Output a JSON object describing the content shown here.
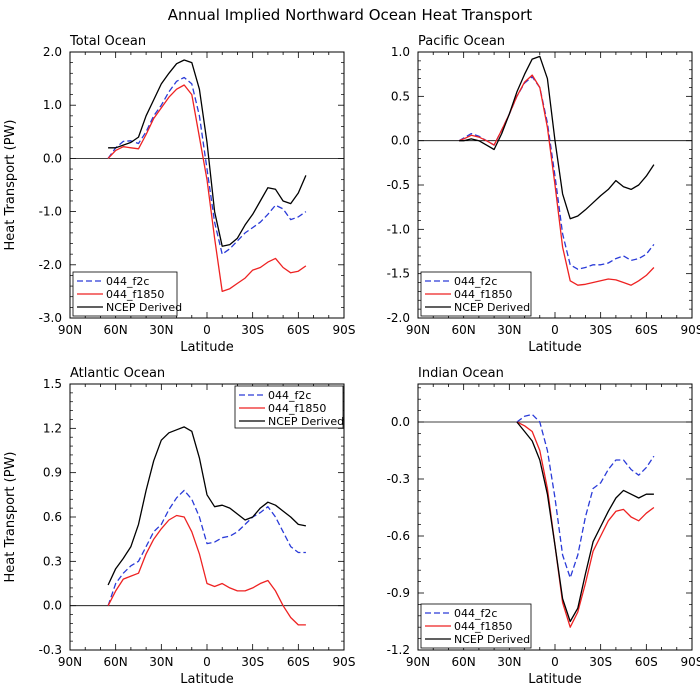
{
  "title": "Annual Implied Northward Ocean Heat Transport",
  "colors": {
    "044_f2c": "#2a3bd8",
    "044_f1850": "#ee2222",
    "NCEP Derived": "#000000"
  },
  "chart_data": [
    {
      "type": "line",
      "title": "Total Ocean",
      "xlabel": "Latitude",
      "ylabel": "Heat Transport (PW)",
      "xlim": [
        90,
        -90
      ],
      "ylim": [
        -3.0,
        2.0
      ],
      "xticks": [
        90,
        60,
        30,
        0,
        -30,
        -60,
        -90
      ],
      "xtick_labels": [
        "90N",
        "60N",
        "30N",
        "0",
        "30S",
        "60S",
        "90S"
      ],
      "yticks": [
        -3.0,
        -2.0,
        -1.0,
        0.0,
        1.0,
        2.0
      ],
      "ytick_labels": [
        "-3.0",
        "-2.0",
        "-1.0",
        "0.0",
        "1.0",
        "2.0"
      ],
      "legend": "bottom-left",
      "series": [
        {
          "name": "044_f2c",
          "style": "dashed",
          "x": [
            65,
            60,
            55,
            50,
            45,
            40,
            35,
            30,
            25,
            20,
            15,
            10,
            5,
            0,
            -5,
            -10,
            -15,
            -20,
            -25,
            -30,
            -35,
            -40,
            -45,
            -50,
            -55,
            -60,
            -65
          ],
          "y": [
            0.0,
            0.2,
            0.32,
            0.33,
            0.28,
            0.5,
            0.8,
            1.0,
            1.25,
            1.45,
            1.52,
            1.4,
            0.8,
            -0.2,
            -1.2,
            -1.8,
            -1.7,
            -1.55,
            -1.4,
            -1.3,
            -1.2,
            -1.05,
            -0.88,
            -0.95,
            -1.15,
            -1.1,
            -1.0
          ]
        },
        {
          "name": "044_f1850",
          "style": "solid",
          "x": [
            65,
            60,
            55,
            50,
            45,
            40,
            35,
            30,
            25,
            20,
            15,
            10,
            5,
            0,
            -5,
            -10,
            -15,
            -20,
            -25,
            -30,
            -35,
            -40,
            -45,
            -50,
            -55,
            -60,
            -65
          ],
          "y": [
            0.0,
            0.15,
            0.22,
            0.2,
            0.18,
            0.45,
            0.75,
            0.95,
            1.15,
            1.3,
            1.38,
            1.2,
            0.4,
            -0.4,
            -1.5,
            -2.5,
            -2.45,
            -2.35,
            -2.25,
            -2.1,
            -2.05,
            -1.95,
            -1.88,
            -2.05,
            -2.15,
            -2.12,
            -2.02
          ]
        },
        {
          "name": "NCEP Derived",
          "style": "solid",
          "x": [
            65,
            60,
            55,
            50,
            45,
            40,
            35,
            30,
            25,
            20,
            15,
            10,
            5,
            0,
            -5,
            -10,
            -15,
            -20,
            -25,
            -30,
            -35,
            -40,
            -45,
            -50,
            -55,
            -60,
            -65
          ],
          "y": [
            0.2,
            0.2,
            0.25,
            0.3,
            0.4,
            0.8,
            1.1,
            1.4,
            1.6,
            1.78,
            1.85,
            1.8,
            1.3,
            0.3,
            -1.0,
            -1.65,
            -1.62,
            -1.5,
            -1.25,
            -1.05,
            -0.8,
            -0.55,
            -0.58,
            -0.8,
            -0.85,
            -0.65,
            -0.32
          ]
        }
      ]
    },
    {
      "type": "line",
      "title": "Pacific Ocean",
      "xlabel": "Latitude",
      "ylabel": "",
      "xlim": [
        90,
        -90
      ],
      "ylim": [
        -2.0,
        1.0
      ],
      "xticks": [
        90,
        60,
        30,
        0,
        -30,
        -60,
        -90
      ],
      "xtick_labels": [
        "90N",
        "60N",
        "30N",
        "0",
        "30S",
        "60S",
        "90S"
      ],
      "yticks": [
        -2.0,
        -1.5,
        -1.0,
        -0.5,
        0.0,
        0.5,
        1.0
      ],
      "ytick_labels": [
        "-2.0",
        "-1.5",
        "-1.0",
        "-0.5",
        "0.0",
        "0.5",
        "1.0"
      ],
      "legend": "bottom-left",
      "series": [
        {
          "name": "044_f2c",
          "style": "dashed",
          "x": [
            63,
            60,
            55,
            50,
            45,
            40,
            35,
            30,
            25,
            20,
            15,
            10,
            5,
            0,
            -5,
            -10,
            -15,
            -20,
            -25,
            -30,
            -35,
            -40,
            -45,
            -50,
            -55,
            -60,
            -65
          ],
          "y": [
            0.0,
            0.03,
            0.08,
            0.05,
            0.0,
            -0.05,
            0.12,
            0.3,
            0.5,
            0.65,
            0.72,
            0.6,
            0.2,
            -0.4,
            -1.05,
            -1.4,
            -1.45,
            -1.43,
            -1.4,
            -1.4,
            -1.38,
            -1.33,
            -1.3,
            -1.35,
            -1.33,
            -1.28,
            -1.17
          ]
        },
        {
          "name": "044_f1850",
          "style": "solid",
          "x": [
            63,
            60,
            55,
            50,
            45,
            40,
            35,
            30,
            25,
            20,
            15,
            10,
            5,
            0,
            -5,
            -10,
            -15,
            -20,
            -25,
            -30,
            -35,
            -40,
            -45,
            -50,
            -55,
            -60,
            -65
          ],
          "y": [
            0.0,
            0.02,
            0.06,
            0.04,
            0.0,
            -0.05,
            0.12,
            0.3,
            0.5,
            0.66,
            0.74,
            0.6,
            0.15,
            -0.5,
            -1.2,
            -1.58,
            -1.63,
            -1.62,
            -1.6,
            -1.58,
            -1.56,
            -1.57,
            -1.6,
            -1.63,
            -1.58,
            -1.52,
            -1.43
          ]
        },
        {
          "name": "NCEP Derived",
          "style": "solid",
          "x": [
            63,
            60,
            55,
            50,
            45,
            40,
            35,
            30,
            25,
            20,
            15,
            10,
            5,
            0,
            -5,
            -10,
            -15,
            -20,
            -25,
            -30,
            -35,
            -40,
            -45,
            -50,
            -55,
            -60,
            -65
          ],
          "y": [
            0.0,
            0.0,
            0.02,
            0.0,
            -0.05,
            -0.1,
            0.08,
            0.3,
            0.55,
            0.75,
            0.92,
            0.95,
            0.7,
            0.0,
            -0.6,
            -0.88,
            -0.85,
            -0.78,
            -0.7,
            -0.62,
            -0.55,
            -0.45,
            -0.52,
            -0.55,
            -0.5,
            -0.4,
            -0.27
          ]
        }
      ]
    },
    {
      "type": "line",
      "title": "Atlantic Ocean",
      "xlabel": "Latitude",
      "ylabel": "Heat Transport (PW)",
      "xlim": [
        90,
        -90
      ],
      "ylim": [
        -0.3,
        1.5
      ],
      "xticks": [
        90,
        60,
        30,
        0,
        -30,
        -60,
        -90
      ],
      "xtick_labels": [
        "90N",
        "60N",
        "30N",
        "0",
        "30S",
        "60S",
        "90S"
      ],
      "yticks": [
        -0.3,
        0.0,
        0.3,
        0.6,
        0.9,
        1.2,
        1.5
      ],
      "ytick_labels": [
        "-0.3",
        "0.0",
        "0.3",
        "0.6",
        "0.9",
        "1.2",
        "1.5"
      ],
      "legend": "top-right",
      "series": [
        {
          "name": "044_f2c",
          "style": "dashed",
          "x": [
            65,
            60,
            55,
            50,
            45,
            40,
            35,
            30,
            25,
            20,
            15,
            10,
            5,
            0,
            -5,
            -10,
            -15,
            -20,
            -25,
            -30,
            -35,
            -40,
            -45,
            -50,
            -55,
            -60,
            -65
          ],
          "y": [
            0.0,
            0.15,
            0.22,
            0.27,
            0.3,
            0.4,
            0.5,
            0.55,
            0.65,
            0.73,
            0.78,
            0.72,
            0.6,
            0.42,
            0.43,
            0.46,
            0.47,
            0.5,
            0.55,
            0.6,
            0.63,
            0.67,
            0.6,
            0.5,
            0.4,
            0.36,
            0.36
          ]
        },
        {
          "name": "044_f1850",
          "style": "solid",
          "x": [
            65,
            60,
            55,
            50,
            45,
            40,
            35,
            30,
            25,
            20,
            15,
            10,
            5,
            0,
            -5,
            -10,
            -15,
            -20,
            -25,
            -30,
            -35,
            -40,
            -45,
            -50,
            -55,
            -60,
            -65
          ],
          "y": [
            0.0,
            0.1,
            0.18,
            0.2,
            0.22,
            0.35,
            0.45,
            0.52,
            0.58,
            0.61,
            0.6,
            0.5,
            0.35,
            0.15,
            0.13,
            0.15,
            0.12,
            0.1,
            0.1,
            0.12,
            0.15,
            0.17,
            0.1,
            0.0,
            -0.08,
            -0.13,
            -0.13
          ]
        },
        {
          "name": "NCEP Derived",
          "style": "solid",
          "x": [
            65,
            60,
            55,
            50,
            45,
            40,
            35,
            30,
            25,
            20,
            15,
            10,
            5,
            0,
            -5,
            -10,
            -15,
            -20,
            -25,
            -30,
            -35,
            -40,
            -45,
            -50,
            -55,
            -60,
            -65
          ],
          "y": [
            0.14,
            0.25,
            0.32,
            0.4,
            0.55,
            0.78,
            0.98,
            1.12,
            1.17,
            1.19,
            1.21,
            1.18,
            1.0,
            0.75,
            0.67,
            0.68,
            0.66,
            0.62,
            0.58,
            0.6,
            0.66,
            0.7,
            0.68,
            0.64,
            0.6,
            0.55,
            0.54
          ]
        }
      ]
    },
    {
      "type": "line",
      "title": "Indian Ocean",
      "xlabel": "Latitude",
      "ylabel": "",
      "xlim": [
        90,
        -90
      ],
      "ylim": [
        -1.2,
        0.2
      ],
      "xticks": [
        90,
        60,
        30,
        0,
        -30,
        -60,
        -90
      ],
      "xtick_labels": [
        "90N",
        "60N",
        "30N",
        "0",
        "30S",
        "60S",
        "90S"
      ],
      "yticks": [
        -1.2,
        -0.9,
        -0.6,
        -0.3,
        0.0
      ],
      "ytick_labels": [
        "-1.2",
        "-0.9",
        "-0.6",
        "-0.3",
        "0.0"
      ],
      "legend": "bottom-left",
      "series": [
        {
          "name": "044_f2c",
          "style": "dashed",
          "x": [
            25,
            20,
            15,
            10,
            5,
            0,
            -5,
            -10,
            -15,
            -20,
            -25,
            -30,
            -35,
            -40,
            -45,
            -50,
            -55,
            -60,
            -65
          ],
          "y": [
            0.0,
            0.03,
            0.04,
            0.0,
            -0.15,
            -0.4,
            -0.7,
            -0.82,
            -0.7,
            -0.5,
            -0.35,
            -0.32,
            -0.25,
            -0.2,
            -0.2,
            -0.25,
            -0.28,
            -0.24,
            -0.18
          ]
        },
        {
          "name": "044_f1850",
          "style": "solid",
          "x": [
            25,
            20,
            15,
            10,
            5,
            0,
            -5,
            -10,
            -15,
            -20,
            -25,
            -30,
            -35,
            -40,
            -45,
            -50,
            -55,
            -60,
            -65
          ],
          "y": [
            0.0,
            -0.02,
            -0.05,
            -0.15,
            -0.35,
            -0.65,
            -0.95,
            -1.08,
            -1.0,
            -0.85,
            -0.68,
            -0.6,
            -0.52,
            -0.47,
            -0.46,
            -0.5,
            -0.52,
            -0.48,
            -0.45
          ]
        },
        {
          "name": "NCEP Derived",
          "style": "solid",
          "x": [
            25,
            20,
            15,
            10,
            5,
            0,
            -5,
            -10,
            -15,
            -20,
            -25,
            -30,
            -35,
            -40,
            -45,
            -50,
            -55,
            -60,
            -65
          ],
          "y": [
            0.0,
            -0.05,
            -0.1,
            -0.2,
            -0.38,
            -0.65,
            -0.93,
            -1.05,
            -0.98,
            -0.8,
            -0.63,
            -0.55,
            -0.47,
            -0.4,
            -0.36,
            -0.38,
            -0.4,
            -0.38,
            -0.38
          ]
        }
      ]
    }
  ]
}
